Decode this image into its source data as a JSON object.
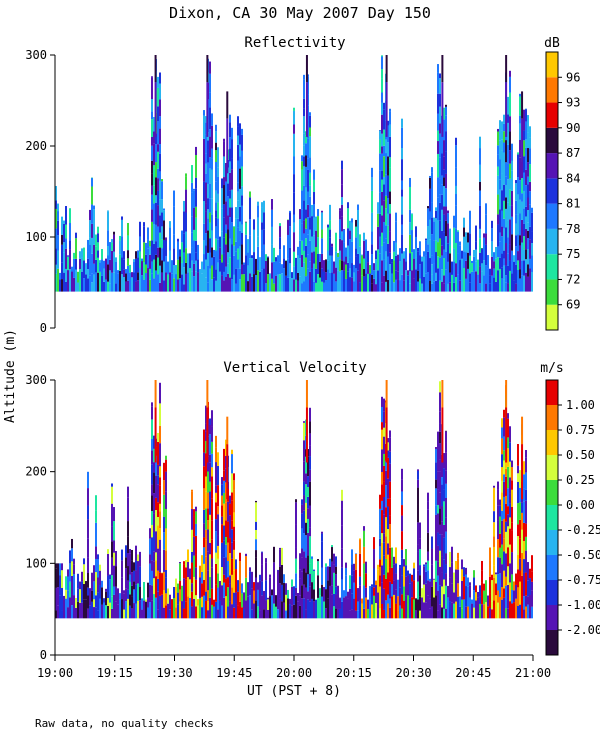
{
  "header": {
    "title": "Dixon, CA 30 May 2007  Day 150"
  },
  "footer": {
    "note": "Raw data, no quality checks"
  },
  "chart_data": [
    {
      "type": "heatmap",
      "title": "Reflectivity",
      "ylabel": "Altitude (m)",
      "ylim": [
        0,
        300
      ],
      "yticks": [
        "0",
        "100",
        "200",
        "300"
      ],
      "xlim_minutes": [
        0,
        120
      ],
      "xticks": [
        "19:00",
        "19:15",
        "19:30",
        "19:45",
        "20:00",
        "20:15",
        "20:30",
        "20:45",
        "21:00"
      ],
      "colorbar": {
        "unit": "dB",
        "tick_labels": [
          "69",
          "72",
          "75",
          "78",
          "81",
          "84",
          "87",
          "90",
          "93",
          "96"
        ],
        "colors": [
          "#d4ff3c",
          "#3cdc3c",
          "#1ee6a0",
          "#28b4f0",
          "#1e78ff",
          "#1c32dc",
          "#5514b4",
          "#2a0a3c",
          "#e60000",
          "#ff7800",
          "#ffc800"
        ]
      },
      "data_floor_m": 40,
      "typical_top_m": 120,
      "plumes": [
        {
          "t_min": 25,
          "top_m": 300
        },
        {
          "t_min": 38,
          "top_m": 300
        },
        {
          "t_min": 43,
          "top_m": 260
        },
        {
          "t_min": 63,
          "top_m": 300
        },
        {
          "t_min": 83,
          "top_m": 300
        },
        {
          "t_min": 97,
          "top_m": 300
        },
        {
          "t_min": 113,
          "top_m": 300
        },
        {
          "t_min": 117,
          "top_m": 260
        }
      ]
    },
    {
      "type": "heatmap",
      "title": "Vertical Velocity",
      "ylabel": "Altitude (m)",
      "ylim": [
        0,
        300
      ],
      "yticks": [
        "0",
        "100",
        "200",
        "300"
      ],
      "xlim_minutes": [
        0,
        120
      ],
      "xticks": [
        "19:00",
        "19:15",
        "19:30",
        "19:45",
        "20:00",
        "20:15",
        "20:30",
        "20:45",
        "21:00"
      ],
      "xlabel": "UT  (PST + 8)",
      "colorbar": {
        "unit": "m/s",
        "tick_labels": [
          "-2.00",
          "-1.00",
          "-0.75",
          "-0.50",
          "-0.25",
          "0.00",
          "0.25",
          "0.50",
          "0.75",
          "1.00"
        ],
        "colors": [
          "#2a0a3c",
          "#5514b4",
          "#1c32dc",
          "#1e78ff",
          "#28b4f0",
          "#1ee6a0",
          "#3cdc3c",
          "#d4ff3c",
          "#ffc800",
          "#ff7800",
          "#e60000"
        ]
      },
      "data_floor_m": 40,
      "typical_top_m": 100,
      "plumes": [
        {
          "t_min": 25,
          "top_m": 300
        },
        {
          "t_min": 38,
          "top_m": 300
        },
        {
          "t_min": 43,
          "top_m": 260
        },
        {
          "t_min": 63,
          "top_m": 300
        },
        {
          "t_min": 83,
          "top_m": 300
        },
        {
          "t_min": 97,
          "top_m": 300
        },
        {
          "t_min": 113,
          "top_m": 300
        },
        {
          "t_min": 117,
          "top_m": 260
        }
      ]
    }
  ]
}
